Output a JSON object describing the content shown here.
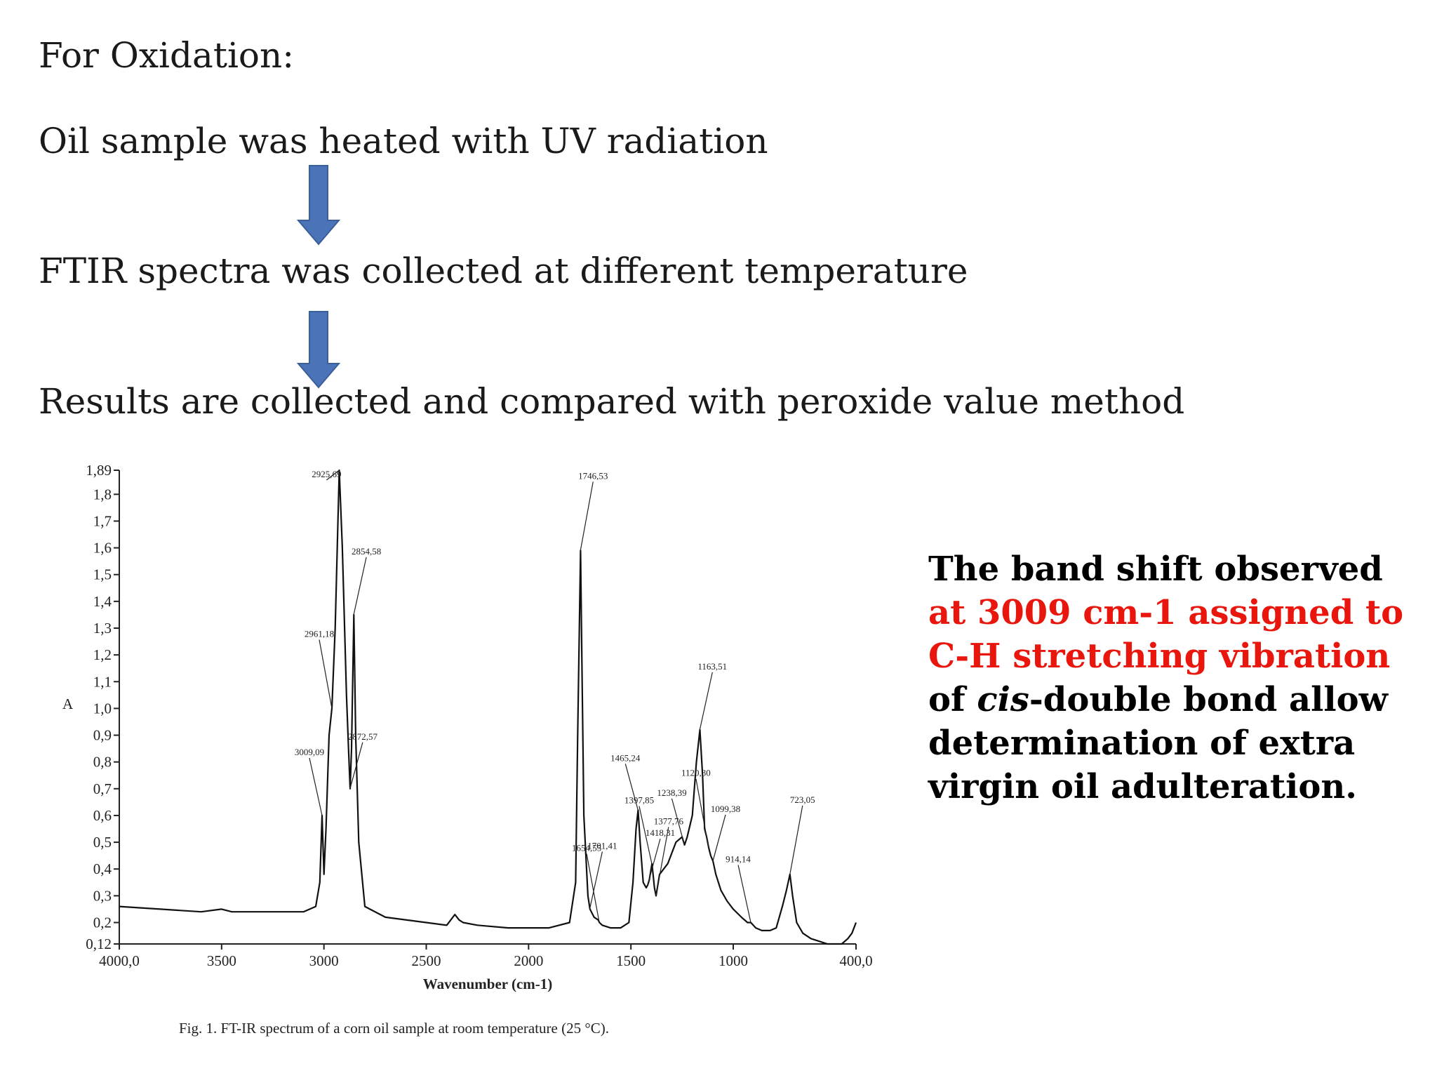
{
  "slide": {
    "heading": "For Oxidation:",
    "steps": [
      "Oil sample was heated with UV radiation",
      "FTIR spectra was collected at different temperature",
      "Results are collected and compared with peroxide value method"
    ],
    "arrow_color": "#4a73b8",
    "arrow_outline": "#3a5e98",
    "note": {
      "part1": "The band shift observed ",
      "highlight": "at 3009 cm-1 assigned to C-H stretching vibration",
      "part2": " of ",
      "italic": "cis",
      "part3": "-double bond allow determination of extra virgin oil adulteration.",
      "highlight_color": "#e8160c"
    }
  },
  "chart_data": {
    "type": "line",
    "caption": "Fig. 1. FT-IR spectrum of a corn oil sample at room temperature (25 °C).",
    "xlabel": "Wavenumber (cm-1)",
    "ylabel": "A",
    "xlim": [
      4000,
      400
    ],
    "ylim": [
      0.12,
      1.89
    ],
    "x_reversed": true,
    "grid": false,
    "x_ticks": [
      "4000,0",
      "3500",
      "3000",
      "2500",
      "2000",
      "1500",
      "1000",
      "400,0"
    ],
    "y_ticks": [
      "1,89",
      "1,8",
      "1,7",
      "1,6",
      "1,5",
      "1,4",
      "1,3",
      "1,2",
      "1,1",
      "1,0",
      "0,9",
      "0,8",
      "0,7",
      "0,6",
      "0,5",
      "0,4",
      "0,3",
      "0,2",
      "0,12"
    ],
    "series": [
      {
        "x": [
          4000,
          3800,
          3600,
          3500,
          3450,
          3300,
          3100,
          3040,
          3020,
          3009,
          3000,
          2990,
          2975,
          2961,
          2945,
          2925,
          2910,
          2890,
          2880,
          2872,
          2865,
          2854,
          2845,
          2830,
          2800,
          2700,
          2500,
          2400,
          2360,
          2340,
          2320,
          2250,
          2100,
          1900,
          1800,
          1770,
          1760,
          1746,
          1740,
          1730,
          1710,
          1700,
          1680,
          1660,
          1654,
          1640,
          1600,
          1550,
          1510,
          1490,
          1475,
          1465,
          1455,
          1440,
          1425,
          1418,
          1410,
          1397,
          1385,
          1377,
          1360,
          1320,
          1280,
          1250,
          1238,
          1225,
          1200,
          1180,
          1163,
          1150,
          1140,
          1130,
          1120,
          1110,
          1099,
          1085,
          1060,
          1030,
          1000,
          960,
          930,
          914,
          890,
          860,
          820,
          790,
          760,
          740,
          723,
          710,
          690,
          660,
          620,
          580,
          540,
          500,
          470,
          440,
          420,
          400
        ],
        "y": [
          0.26,
          0.25,
          0.24,
          0.25,
          0.24,
          0.24,
          0.24,
          0.26,
          0.35,
          0.6,
          0.38,
          0.55,
          0.9,
          1.0,
          1.3,
          1.89,
          1.6,
          1.05,
          0.85,
          0.7,
          0.85,
          1.35,
          0.9,
          0.5,
          0.26,
          0.22,
          0.2,
          0.19,
          0.23,
          0.21,
          0.2,
          0.19,
          0.18,
          0.18,
          0.2,
          0.35,
          0.9,
          1.59,
          1.2,
          0.6,
          0.3,
          0.25,
          0.22,
          0.21,
          0.2,
          0.19,
          0.18,
          0.18,
          0.2,
          0.35,
          0.55,
          0.62,
          0.5,
          0.35,
          0.33,
          0.34,
          0.36,
          0.42,
          0.33,
          0.3,
          0.38,
          0.42,
          0.5,
          0.52,
          0.49,
          0.52,
          0.6,
          0.8,
          0.92,
          0.75,
          0.55,
          0.52,
          0.48,
          0.45,
          0.43,
          0.38,
          0.32,
          0.28,
          0.25,
          0.22,
          0.2,
          0.2,
          0.18,
          0.17,
          0.17,
          0.18,
          0.26,
          0.32,
          0.38,
          0.3,
          0.2,
          0.16,
          0.14,
          0.13,
          0.12,
          0.12,
          0.12,
          0.14,
          0.16,
          0.2
        ]
      }
    ],
    "annotations": [
      {
        "label": "2925,69",
        "x": 2925.69,
        "y": 1.89
      },
      {
        "label": "2854,58",
        "x": 2854.58,
        "y": 1.35
      },
      {
        "label": "2961,18",
        "x": 2961.18,
        "y": 1.0
      },
      {
        "label": "2872,57",
        "x": 2872.57,
        "y": 0.7
      },
      {
        "label": "3009,09",
        "x": 3009.09,
        "y": 0.6
      },
      {
        "label": "1746,53",
        "x": 1746.53,
        "y": 1.59
      },
      {
        "label": "1465,24",
        "x": 1465.24,
        "y": 0.62
      },
      {
        "label": "1701,41",
        "x": 1701.41,
        "y": 0.25
      },
      {
        "label": "1654,55",
        "x": 1654.55,
        "y": 0.2
      },
      {
        "label": "1418,31",
        "x": 1418.31,
        "y": 0.34
      },
      {
        "label": "1397,85",
        "x": 1397.85,
        "y": 0.42
      },
      {
        "label": "1377,76",
        "x": 1377.76,
        "y": 0.3
      },
      {
        "label": "1238,39",
        "x": 1238.39,
        "y": 0.49
      },
      {
        "label": "1163,51",
        "x": 1163.51,
        "y": 0.92
      },
      {
        "label": "1120,30",
        "x": 1120.3,
        "y": 0.48
      },
      {
        "label": "1099,38",
        "x": 1099.38,
        "y": 0.43
      },
      {
        "label": "914,14",
        "x": 914.14,
        "y": 0.2
      },
      {
        "label": "723,05",
        "x": 723.05,
        "y": 0.38
      }
    ]
  }
}
